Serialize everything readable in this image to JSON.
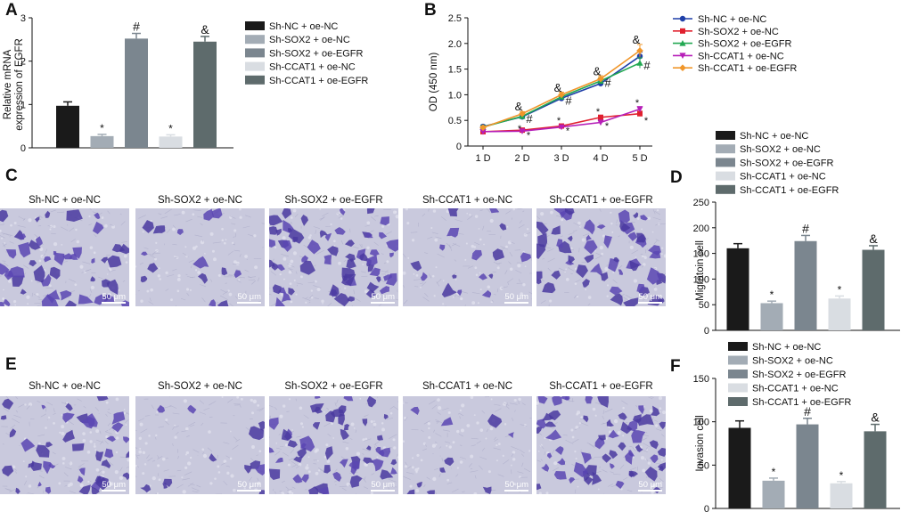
{
  "panels": {
    "A": {
      "letter": "A"
    },
    "B": {
      "letter": "B"
    },
    "C": {
      "letter": "C"
    },
    "D": {
      "letter": "D"
    },
    "E": {
      "letter": "E"
    },
    "F": {
      "letter": "F"
    }
  },
  "groups": [
    "Sh-NC + oe-NC",
    "Sh-SOX2 + oe-NC",
    "Sh-SOX2 + oe-EGFR",
    "Sh-CCAT1 + oe-NC",
    "Sh-CCAT1 + oe-EGFR"
  ],
  "bar_colors": [
    "#1a1a1a",
    "#a3acb5",
    "#7b868f",
    "#d9dde2",
    "#5e6b6c"
  ],
  "line_colors": [
    "#1f3fa8",
    "#e0202f",
    "#22a852",
    "#b61fb8",
    "#f0962a"
  ],
  "micrographs": {
    "scale_label": "50 μm",
    "C": {
      "labels": [
        "Sh-NC + oe-NC",
        "Sh-SOX2 + oe-NC",
        "Sh-SOX2 + oe-EGFR",
        "Sh-CCAT1 + oe-NC",
        "Sh-CCAT1 + oe-EGFR"
      ]
    },
    "E": {
      "labels": [
        "Sh-NC + oe-NC",
        "Sh-SOX2 + oe-NC",
        "Sh-SOX2 + oe-EGFR",
        "Sh-CCAT1 + oe-NC",
        "Sh-CCAT1 + oe-EGFR"
      ]
    }
  },
  "chart_data": [
    {
      "id": "A",
      "type": "bar",
      "categories": [
        "Sh-NC + oe-NC",
        "Sh-SOX2 + oe-NC",
        "Sh-SOX2 + oe-EGFR",
        "Sh-CCAT1 + oe-NC",
        "Sh-CCAT1 + oe-EGFR"
      ],
      "values": [
        0.97,
        0.27,
        2.52,
        0.26,
        2.45
      ],
      "errors": [
        0.09,
        0.04,
        0.12,
        0.04,
        0.12
      ],
      "annotations": [
        "",
        "*",
        "#",
        "*",
        "&"
      ],
      "ylabel": "Relative mRNA expression of EGFR",
      "ylabel_lines": [
        "Relative mRNA",
        "expression of EGFR"
      ],
      "ylim": [
        0,
        3
      ],
      "yticks": [
        "0",
        "1",
        "2",
        "3"
      ],
      "legend": [
        "Sh-NC + oe-NC",
        "Sh-SOX2 + oe-NC",
        "Sh-SOX2 + oe-EGFR",
        "Sh-CCAT1 + oe-NC",
        "Sh-CCAT1 + oe-EGFR"
      ]
    },
    {
      "id": "B",
      "type": "line",
      "x": [
        "1 D",
        "2 D",
        "3 D",
        "4 D",
        "5 D"
      ],
      "ylabel": "OD (450 nm)",
      "ylim": [
        0,
        2.5
      ],
      "yticks": [
        "0",
        "0.5",
        "1.0",
        "1.5",
        "2.0",
        "2.5"
      ],
      "series": [
        {
          "name": "Sh-NC + oe-NC",
          "values": [
            0.38,
            0.57,
            0.93,
            1.22,
            1.75
          ],
          "errors": [
            0.03,
            0.04,
            0.05,
            0.06,
            0.08
          ]
        },
        {
          "name": "Sh-SOX2 + oe-NC",
          "values": [
            0.28,
            0.31,
            0.39,
            0.56,
            0.63
          ],
          "errors": [
            0.02,
            0.03,
            0.03,
            0.04,
            0.05
          ]
        },
        {
          "name": "Sh-SOX2 + oe-EGFR",
          "values": [
            0.37,
            0.58,
            0.96,
            1.27,
            1.62
          ],
          "errors": [
            0.03,
            0.04,
            0.05,
            0.06,
            0.1
          ]
        },
        {
          "name": "Sh-CCAT1 + oe-NC",
          "values": [
            0.28,
            0.29,
            0.37,
            0.46,
            0.72
          ],
          "errors": [
            0.02,
            0.02,
            0.03,
            0.03,
            0.05
          ]
        },
        {
          "name": "Sh-CCAT1 + oe-EGFR",
          "values": [
            0.36,
            0.63,
            1.0,
            1.31,
            1.86
          ],
          "errors": [
            0.03,
            0.04,
            0.05,
            0.06,
            0.12
          ]
        }
      ],
      "annotations": [
        {
          "text": "&",
          "x": "2 D",
          "y": 0.76
        },
        {
          "text": "#",
          "x": "2 D",
          "y": 0.52
        },
        {
          "text": "*",
          "x": "2 D",
          "y": 0.35
        },
        {
          "text": "*",
          "x": "2 D",
          "y": 0.22
        },
        {
          "text": "&",
          "x": "3 D",
          "y": 1.13
        },
        {
          "text": "#",
          "x": "3 D",
          "y": 0.88
        },
        {
          "text": "*",
          "x": "3 D",
          "y": 0.5
        },
        {
          "text": "*",
          "x": "3 D",
          "y": 0.3
        },
        {
          "text": "&",
          "x": "4 D",
          "y": 1.45
        },
        {
          "text": "#",
          "x": "4 D",
          "y": 1.22
        },
        {
          "text": "*",
          "x": "4 D",
          "y": 0.68
        },
        {
          "text": "*",
          "x": "4 D",
          "y": 0.4
        },
        {
          "text": "&",
          "x": "5 D",
          "y": 2.07
        },
        {
          "text": "#",
          "x": "5 D",
          "y": 1.56
        },
        {
          "text": "*",
          "x": "5 D",
          "y": 0.85
        },
        {
          "text": "*",
          "x": "5 D",
          "y": 0.5
        }
      ],
      "legend": [
        "Sh-NC + oe-NC",
        "Sh-SOX2 + oe-NC",
        "Sh-SOX2 + oe-EGFR",
        "Sh-CCAT1 + oe-NC",
        "Sh-CCAT1 + oe-EGFR"
      ]
    },
    {
      "id": "D",
      "type": "bar",
      "categories": [
        "Sh-NC + oe-NC",
        "Sh-SOX2 + oe-NC",
        "Sh-SOX2 + oe-EGFR",
        "Sh-CCAT1 + oe-NC",
        "Sh-CCAT1 + oe-EGFR"
      ],
      "values": [
        160,
        53,
        174,
        62,
        157
      ],
      "errors": [
        9,
        4,
        11,
        5,
        8
      ],
      "annotations": [
        "",
        "*",
        "#",
        "*",
        "&"
      ],
      "ylabel": "Migratoin cell",
      "ylabel_lines": [
        "Migratoin cell"
      ],
      "ylim": [
        0,
        250
      ],
      "yticks": [
        "0",
        "50",
        "100",
        "150",
        "200",
        "250"
      ],
      "legend": [
        "Sh-NC + oe-NC",
        "Sh-SOX2 + oe-NC",
        "Sh-SOX2 + oe-EGFR",
        "Sh-CCAT1 + oe-NC",
        "Sh-CCAT1 + oe-EGFR"
      ]
    },
    {
      "id": "F",
      "type": "bar",
      "categories": [
        "Sh-NC + oe-NC",
        "Sh-SOX2 + oe-NC",
        "Sh-SOX2 + oe-EGFR",
        "Sh-CCAT1 + oe-NC",
        "Sh-CCAT1 + oe-EGFR"
      ],
      "values": [
        93,
        32,
        97,
        29,
        89
      ],
      "errors": [
        8,
        3,
        7,
        2,
        8
      ],
      "annotations": [
        "",
        "*",
        "#",
        "*",
        "&"
      ],
      "ylabel": "Invasion cell",
      "ylabel_lines": [
        "Invasion cell"
      ],
      "ylim": [
        0,
        150
      ],
      "yticks": [
        "0",
        "50",
        "100",
        "150"
      ],
      "legend": [
        "Sh-NC + oe-NC",
        "Sh-SOX2 + oe-NC",
        "Sh-SOX2 + oe-EGFR",
        "Sh-CCAT1 + oe-NC",
        "Sh-CCAT1 + oe-EGFR"
      ]
    }
  ]
}
